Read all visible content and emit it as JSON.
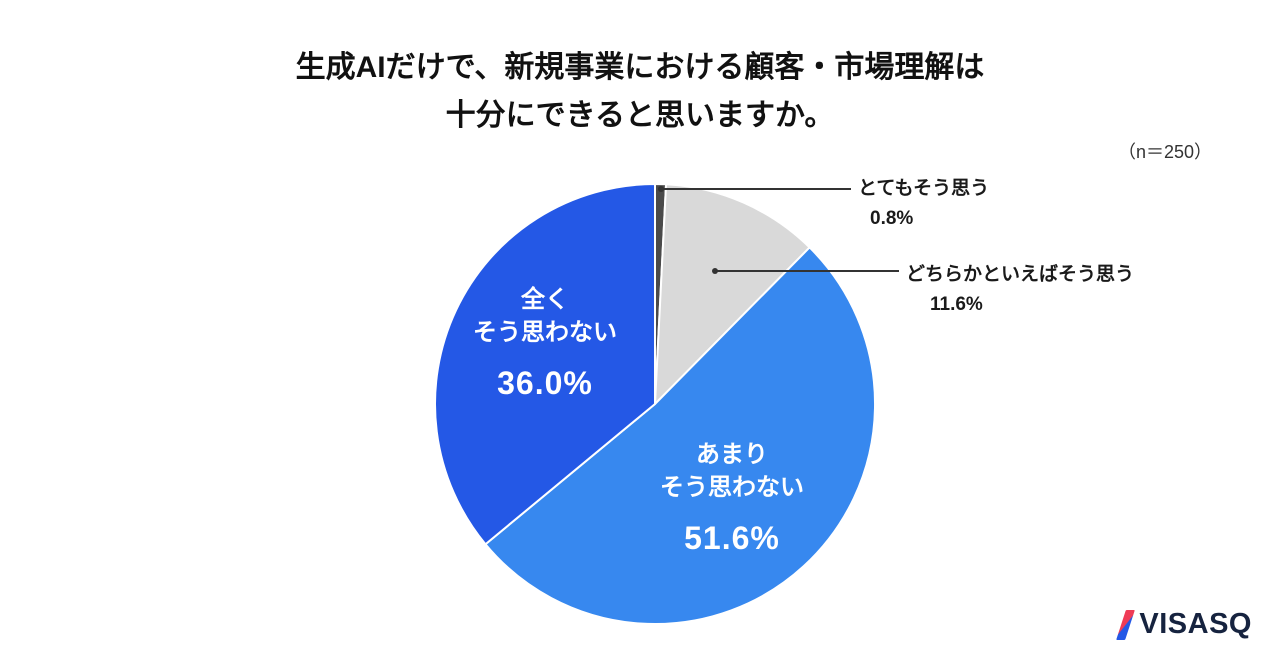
{
  "title": {
    "line1": "生成AIだけで、新規事業における顧客・市場理解は",
    "line2": "十分にできると思いますか。"
  },
  "sample_size": "（n＝250）",
  "chart_data": {
    "type": "pie",
    "title": "生成AIだけで、新規事業における顧客・市場理解は十分にできると思いますか。",
    "n": 250,
    "labels": [
      "とてもそう思う",
      "どちらかといえばそう思う",
      "あまりそう思わない",
      "全くそう思わない"
    ],
    "values": [
      0.8,
      11.6,
      51.6,
      36.0
    ],
    "value_labels": [
      "0.8%",
      "11.6%",
      "51.6%",
      "36.0%"
    ],
    "colors": [
      "#4a4a4a",
      "#d9d9d9",
      "#3788ef",
      "#2458e6"
    ],
    "start_angle_deg": 0,
    "direction": "clockwise",
    "legend": "none",
    "label_style": "large slices labeled inside in white; small slices use leader lines to outside labels"
  },
  "inside_labels": [
    {
      "name_lines": [
        "全く",
        "そう思わない"
      ],
      "value": "36.0%"
    },
    {
      "name_lines": [
        "あまり",
        "そう思わない"
      ],
      "value": "51.6%"
    }
  ],
  "callouts": [
    {
      "label": "とてもそう思う",
      "value": "0.8%"
    },
    {
      "label": "どちらかといえばそう思う",
      "value": "11.6%"
    }
  ],
  "logo": {
    "text": "VISASQ"
  }
}
